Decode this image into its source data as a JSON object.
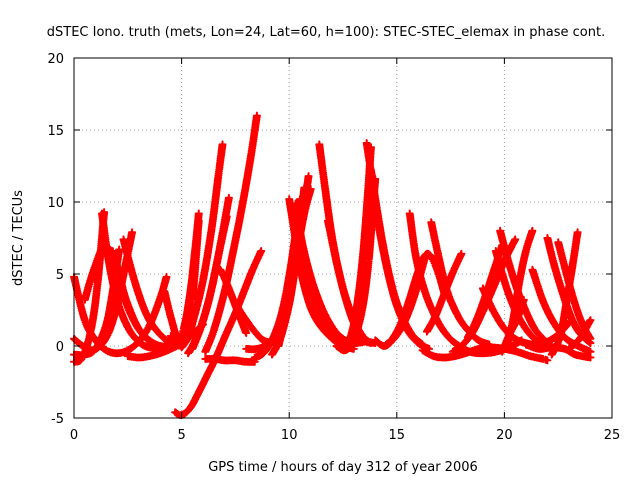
{
  "chart_data": {
    "type": "scatter",
    "title": "dSTEC Iono. truth (mets, Lon=24, Lat=60, h=100): STEC-STEC_elemax in phase cont.",
    "xlabel": "GPS time / hours of day 312 of year 2006",
    "ylabel": "dSTEC  / TECUs",
    "xlim": [
      0,
      25
    ],
    "ylim": [
      -5,
      20
    ],
    "xticks": [
      "0",
      "5",
      "10",
      "15",
      "20",
      "25"
    ],
    "yticks": [
      "-5",
      "0",
      "5",
      "10",
      "15",
      "20"
    ],
    "grid": true,
    "legend": "none",
    "marker": "+",
    "color": "#ff0000",
    "series": [
      {
        "x": [
          0.0,
          0.5,
          1.0,
          1.5,
          2.0,
          2.5,
          3.0,
          3.5,
          4.0,
          4.3
        ],
        "y": [
          4.8,
          1.8,
          0.4,
          -0.3,
          -0.5,
          -0.3,
          0.3,
          1.4,
          3.3,
          4.8
        ]
      },
      {
        "x": [
          0.0,
          0.4,
          0.8,
          1.2,
          1.6,
          2.0,
          2.4,
          2.7
        ],
        "y": [
          0.5,
          0.0,
          -0.3,
          0.0,
          0.9,
          2.8,
          5.7,
          7.9
        ]
      },
      {
        "x": [
          0.0,
          0.4,
          0.8,
          1.1,
          1.4
        ],
        "y": [
          -1.1,
          -0.8,
          1.2,
          4.4,
          9.3
        ]
      },
      {
        "x": [
          0.0,
          0.5,
          1.0,
          1.5,
          1.8,
          2.1
        ],
        "y": [
          -0.6,
          -0.6,
          -0.2,
          1.5,
          3.8,
          6.7
        ]
      },
      {
        "x": [
          1.3,
          1.6,
          2.0,
          2.5,
          3.0,
          3.5,
          4.0,
          4.6
        ],
        "y": [
          9.2,
          6.0,
          3.2,
          1.3,
          0.3,
          -0.1,
          -0.1,
          0.2
        ]
      },
      {
        "x": [
          0.5,
          0.9,
          1.4,
          1.9,
          2.4,
          3.0,
          3.6
        ],
        "y": [
          3.2,
          5.2,
          6.9,
          6.0,
          3.3,
          1.2,
          0.2
        ]
      },
      {
        "x": [
          1.8,
          2.1,
          2.5,
          3.0,
          3.5,
          4.0,
          4.5,
          5.0
        ],
        "y": [
          6.6,
          4.6,
          2.7,
          1.2,
          0.4,
          0.0,
          0.0,
          0.3
        ]
      },
      {
        "x": [
          2.3,
          2.7,
          3.1,
          3.5,
          4.0,
          4.5,
          5.0
        ],
        "y": [
          7.4,
          5.1,
          3.2,
          1.8,
          0.8,
          0.2,
          0.0
        ]
      },
      {
        "x": [
          2.5,
          3.0,
          3.5,
          4.0,
          4.5,
          5.0,
          5.5,
          6.0
        ],
        "y": [
          -0.7,
          -0.8,
          -0.7,
          -0.5,
          -0.2,
          0.2,
          0.8,
          1.5
        ]
      },
      {
        "x": [
          4.2,
          4.5,
          4.8,
          5.2,
          5.5,
          5.8
        ],
        "y": [
          3.8,
          2.0,
          0.6,
          0.4,
          3.2,
          8.7
        ]
      },
      {
        "x": [
          4.5,
          4.8,
          5.1,
          5.4,
          5.6,
          5.8
        ],
        "y": [
          0.7,
          0.2,
          1.2,
          3.7,
          6.3,
          9.2
        ]
      },
      {
        "x": [
          5.0,
          5.3,
          5.6,
          6.0,
          6.4,
          6.7,
          6.9
        ],
        "y": [
          -0.1,
          0.6,
          2.1,
          4.6,
          8.2,
          11.7,
          14.0
        ]
      },
      {
        "x": [
          5.3,
          5.6,
          6.0,
          6.4,
          6.8,
          7.2
        ],
        "y": [
          -0.5,
          0.3,
          1.8,
          4.0,
          7.0,
          10.3
        ]
      },
      {
        "x": [
          5.5,
          5.9,
          6.3,
          6.7,
          7.1
        ],
        "y": [
          -0.2,
          1.3,
          3.4,
          6.2,
          9.0
        ]
      },
      {
        "x": [
          6.1,
          6.5,
          7.0,
          7.4,
          7.8,
          8.2,
          8.5
        ],
        "y": [
          -0.4,
          1.1,
          3.8,
          6.6,
          9.6,
          13.0,
          16.0
        ]
      },
      {
        "x": [
          4.7,
          5.0,
          5.4,
          5.8,
          6.2,
          6.6,
          7.0,
          7.5,
          7.9,
          8.3,
          8.7
        ],
        "y": [
          -4.6,
          -4.8,
          -4.3,
          -3.2,
          -2.0,
          -0.8,
          0.6,
          2.3,
          3.8,
          5.3,
          6.6
        ]
      },
      {
        "x": [
          6.1,
          6.6,
          7.0,
          7.5,
          8.0,
          8.4
        ],
        "y": [
          -0.9,
          -0.9,
          -1.0,
          -1.0,
          -1.1,
          -1.1
        ]
      },
      {
        "x": [
          6.8,
          7.0,
          7.3,
          7.6,
          8.0
        ],
        "y": [
          5.3,
          4.7,
          3.6,
          2.4,
          0.9
        ]
      },
      {
        "x": [
          7.6,
          8.0,
          8.4,
          8.8,
          9.2,
          9.6,
          10.0
        ],
        "y": [
          2.7,
          1.8,
          1.0,
          0.4,
          0.3,
          0.9,
          3.0
        ]
      },
      {
        "x": [
          8.4,
          8.8,
          9.2,
          9.6,
          9.9,
          10.2,
          10.5
        ],
        "y": [
          -0.8,
          -0.5,
          0.4,
          2.0,
          4.0,
          6.8,
          10.2
        ]
      },
      {
        "x": [
          8.0,
          8.5,
          9.0,
          9.4,
          9.8,
          10.1,
          10.4,
          10.7
        ],
        "y": [
          -0.2,
          -0.2,
          0.1,
          0.9,
          2.5,
          4.4,
          7.1,
          11.0
        ]
      },
      {
        "x": [
          9.2,
          9.6,
          10.0,
          10.3,
          10.6,
          10.9
        ],
        "y": [
          -0.6,
          0.6,
          2.9,
          5.6,
          8.6,
          11.8
        ]
      },
      {
        "x": [
          9.5,
          9.8,
          10.1,
          10.4,
          10.7,
          11.0
        ],
        "y": [
          0.0,
          1.8,
          4.3,
          6.8,
          9.2,
          10.9
        ]
      },
      {
        "x": [
          10.0,
          10.2,
          10.5,
          10.8,
          11.1,
          11.5,
          12.0,
          12.5,
          13.0
        ],
        "y": [
          10.2,
          8.3,
          5.5,
          3.6,
          2.3,
          1.3,
          0.5,
          0.0,
          -0.2
        ]
      },
      {
        "x": [
          10.3,
          10.6,
          11.0,
          11.5,
          12.0,
          12.5,
          13.0,
          13.5
        ],
        "y": [
          9.9,
          7.2,
          4.8,
          2.7,
          1.3,
          0.5,
          0.2,
          0.3
        ]
      },
      {
        "x": [
          10.4,
          10.8,
          11.2,
          11.6,
          12.0,
          12.5,
          13.0
        ],
        "y": [
          6.6,
          4.3,
          2.8,
          1.6,
          0.8,
          0.2,
          0.0
        ]
      },
      {
        "x": [
          11.4,
          11.7,
          12.0,
          12.4,
          12.8,
          13.2,
          13.6,
          14.0
        ],
        "y": [
          14.0,
          10.6,
          7.5,
          4.6,
          2.6,
          1.2,
          0.4,
          0.2
        ]
      },
      {
        "x": [
          11.8,
          12.2,
          12.6,
          13.0,
          13.4,
          13.8
        ],
        "y": [
          8.7,
          5.8,
          3.4,
          1.6,
          0.5,
          0.2
        ]
      },
      {
        "x": [
          12.2,
          12.6,
          13.0,
          13.4,
          13.7,
          14.0
        ],
        "y": [
          0.0,
          -0.3,
          0.4,
          2.6,
          6.0,
          11.6
        ]
      },
      {
        "x": [
          12.8,
          13.1,
          13.4,
          13.6,
          13.8
        ],
        "y": [
          0.3,
          2.3,
          5.9,
          9.5,
          13.8
        ]
      },
      {
        "x": [
          13.6,
          13.9,
          14.2,
          14.6,
          15.0,
          15.5,
          16.0,
          16.5
        ],
        "y": [
          14.1,
          11.1,
          8.0,
          5.0,
          2.8,
          1.1,
          0.2,
          -0.2
        ]
      },
      {
        "x": [
          13.8,
          14.1,
          14.4,
          14.8,
          15.2,
          15.7,
          16.2
        ],
        "y": [
          12.2,
          9.3,
          6.7,
          4.0,
          2.2,
          0.8,
          0.1
        ]
      },
      {
        "x": [
          14.0,
          14.4,
          14.8,
          15.3,
          15.8,
          16.3
        ],
        "y": [
          0.4,
          0.0,
          0.4,
          1.5,
          3.4,
          6.1
        ]
      },
      {
        "x": [
          14.5,
          14.8,
          15.2,
          15.6,
          16.0,
          16.4,
          16.8,
          17.2
        ],
        "y": [
          0.1,
          0.5,
          1.6,
          3.3,
          5.2,
          6.4,
          5.6,
          3.7
        ]
      },
      {
        "x": [
          15.6,
          15.9,
          16.3,
          16.8,
          17.3,
          17.8,
          18.4,
          19.0,
          19.6,
          20.2,
          20.8
        ],
        "y": [
          9.2,
          6.1,
          3.8,
          2.0,
          0.8,
          0.1,
          -0.4,
          -0.5,
          -0.4,
          -0.1,
          0.4
        ]
      },
      {
        "x": [
          16.6,
          16.9,
          17.3,
          17.8,
          18.3,
          18.8,
          19.3
        ],
        "y": [
          8.6,
          6.5,
          4.0,
          2.2,
          1.1,
          0.4,
          0.1
        ]
      },
      {
        "x": [
          16.2,
          16.7,
          17.2,
          17.7,
          18.2,
          18.8,
          19.4,
          20.0,
          20.6,
          21.2,
          21.8,
          22.0
        ],
        "y": [
          -0.3,
          -0.7,
          -0.8,
          -0.7,
          -0.5,
          -0.2,
          -0.1,
          -0.2,
          -0.4,
          -0.7,
          -0.9,
          -1.0
        ]
      },
      {
        "x": [
          16.4,
          16.8,
          17.2,
          17.6,
          18.0
        ],
        "y": [
          1.0,
          2.1,
          3.6,
          5.1,
          6.4
        ]
      },
      {
        "x": [
          17.6,
          18.0,
          18.5,
          19.0,
          19.5,
          20.0,
          20.5
        ],
        "y": [
          -0.4,
          0.0,
          0.9,
          2.4,
          4.1,
          5.9,
          7.4
        ]
      },
      {
        "x": [
          18.3,
          18.7,
          19.1,
          19.5,
          19.9
        ],
        "y": [
          0.6,
          1.8,
          3.4,
          5.2,
          7.0
        ]
      },
      {
        "x": [
          19.0,
          19.5,
          20.0,
          20.5,
          21.0,
          21.5,
          22.0,
          22.5,
          23.0
        ],
        "y": [
          4.0,
          2.4,
          1.2,
          0.5,
          0.2,
          0.1,
          0.3,
          0.8,
          1.6
        ]
      },
      {
        "x": [
          19.6,
          19.9,
          20.3,
          20.7,
          21.2,
          21.7,
          22.2
        ],
        "y": [
          6.6,
          5.0,
          3.2,
          1.9,
          0.8,
          0.2,
          0.0
        ]
      },
      {
        "x": [
          19.8,
          20.2,
          20.6,
          21.0,
          21.4,
          21.8
        ],
        "y": [
          8.0,
          5.8,
          3.9,
          2.4,
          1.2,
          0.5
        ]
      },
      {
        "x": [
          19.9,
          20.2,
          20.6,
          20.9
        ],
        "y": [
          -0.4,
          0.7,
          1.9,
          3.2
        ]
      },
      {
        "x": [
          20.1,
          20.4,
          20.7,
          21.0,
          21.3
        ],
        "y": [
          -0.1,
          1.8,
          4.5,
          6.6,
          8.0
        ]
      },
      {
        "x": [
          22.0,
          22.3,
          22.7,
          23.1,
          23.5,
          24.0
        ],
        "y": [
          7.5,
          5.7,
          3.7,
          2.0,
          0.9,
          0.2
        ]
      },
      {
        "x": [
          22.5,
          22.8,
          23.2,
          23.6,
          24.0
        ],
        "y": [
          7.2,
          5.5,
          3.3,
          1.6,
          0.5
        ]
      },
      {
        "x": [
          21.3,
          21.8,
          22.3,
          22.8,
          23.3,
          24.0
        ],
        "y": [
          5.3,
          3.1,
          1.6,
          0.6,
          0.1,
          -0.4
        ]
      },
      {
        "x": [
          21.0,
          21.6,
          22.2,
          22.8,
          23.3,
          24.0
        ],
        "y": [
          0.1,
          -0.2,
          -0.1,
          -0.2,
          -0.6,
          -0.8
        ]
      },
      {
        "x": [
          22.2,
          22.6,
          22.9,
          23.2,
          23.4
        ],
        "y": [
          -0.6,
          0.7,
          3.2,
          5.9,
          7.9
        ]
      },
      {
        "x": [
          23.0,
          23.5,
          24.0
        ],
        "y": [
          -0.2,
          0.5,
          1.8
        ]
      }
    ]
  }
}
